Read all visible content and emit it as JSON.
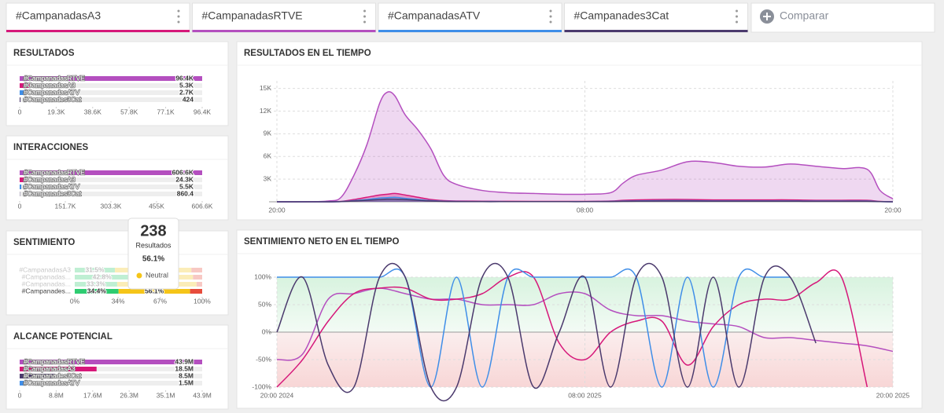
{
  "tabs": [
    {
      "label": "#CampanadasA3",
      "color": "#d6187a"
    },
    {
      "label": "#CampanadasRTVE",
      "color": "#b44fbf"
    },
    {
      "label": "#CampanadasATV",
      "color": "#3f8ee8"
    },
    {
      "label": "#Campanades3Cat",
      "color": "#4b3a6d"
    }
  ],
  "compare": "Comparar",
  "panels": {
    "resultados": {
      "type": "bar",
      "title": "RESULTADOS",
      "categories": [
        "#CampanadasRTVE",
        "#CampanadasA3",
        "#CampanadasATV",
        "#Campanades3Cat"
      ],
      "values": [
        96400,
        5300,
        2700,
        424
      ],
      "value_labels": [
        "96.4K",
        "5.3K",
        "2.7K",
        "424"
      ],
      "colors": [
        "#b44fbf",
        "#d6187a",
        "#3f8ee8",
        "#4b3a6d"
      ],
      "xlim": [
        0,
        96400
      ],
      "xticks": [
        0,
        {
          "value": 19280,
          "label": "19.3K"
        },
        {
          "value": 38560,
          "label": "38.6K"
        },
        {
          "value": 57840,
          "label": "57.8K"
        },
        {
          "value": 77120,
          "label": "77.1K"
        },
        {
          "value": 96400,
          "label": "96.4K"
        }
      ]
    },
    "interacciones": {
      "type": "bar",
      "title": "INTERACCIONES",
      "categories": [
        "#CampanadasRTVE",
        "#CampanadasA3",
        "#CampanadasATV",
        "#Campanades3Cat"
      ],
      "values": [
        606600,
        24300,
        5500,
        860.4
      ],
      "value_labels": [
        "606.6K",
        "24.3K",
        "5.5K",
        "860.4"
      ],
      "colors": [
        "#b44fbf",
        "#d6187a",
        "#3f8ee8",
        "#4b3a6d"
      ],
      "xlim": [
        0,
        606600
      ],
      "xticks": [
        0,
        {
          "value": 151650,
          "label": "151.7K"
        },
        {
          "value": 303300,
          "label": "303.3K"
        },
        {
          "value": 454950,
          "label": "455K"
        },
        {
          "value": 606600,
          "label": "606.6K"
        }
      ]
    },
    "sentimiento": {
      "type": "stacked_bar",
      "title": "SENTIMIENTO",
      "categories": [
        "#CampanadasA3",
        "#Campanadas...",
        "#Campanadas...",
        "#Campanades..."
      ],
      "highlight": 3,
      "series": [
        {
          "color": "#2ecc71",
          "values": [
            31.5,
            42.8,
            33.3,
            34.4
          ],
          "value_labels": [
            "31.5%",
            "42.8%",
            "33.3%",
            "34.4%"
          ]
        },
        {
          "color": "#f5c518",
          "values": [
            60,
            50,
            62.3,
            56.1
          ],
          "value_labels": [
            null,
            null,
            null,
            "56.1%"
          ]
        },
        {
          "color": "#e74c3c",
          "values": [
            8.5,
            7.2,
            4.4,
            9.5
          ],
          "value_labels": [
            null,
            null,
            null,
            null
          ]
        }
      ],
      "xlim": [
        0,
        100
      ],
      "xticks": [
        {
          "value": 0,
          "label": "0%"
        },
        {
          "value": 34,
          "label": "34%"
        },
        {
          "value": 67,
          "label": "67%"
        },
        {
          "value": 100,
          "label": "100%"
        }
      ],
      "tooltip": {
        "value": 238,
        "label": "Resultados",
        "percent": "56.1%",
        "category": "Neutral",
        "color": "#f5c518"
      }
    },
    "alcance": {
      "type": "bar",
      "title": "ALCANCE POTENCIAL",
      "categories": [
        "#CampanadasRTVE",
        "#CampanadasA3",
        "#Campanades3Cat",
        "#CampanadasATV"
      ],
      "values": [
        43900000,
        18500000,
        8500000,
        1500000
      ],
      "value_labels": [
        "43.9M",
        "18.5M",
        "8.5M",
        "1.5M"
      ],
      "colors": [
        "#b44fbf",
        "#d6187a",
        "#4b3a6d",
        "#3f8ee8"
      ],
      "xlim": [
        0,
        43900000
      ],
      "xticks": [
        0,
        {
          "value": 8780000,
          "label": "8.8M"
        },
        {
          "value": 17560000,
          "label": "17.6M"
        },
        {
          "value": 26340000,
          "label": "26.3M"
        },
        {
          "value": 35120000,
          "label": "35.1M"
        },
        {
          "value": 43900000,
          "label": "43.9M"
        }
      ]
    },
    "tiempo": {
      "type": "area",
      "title": "RESULTADOS EN EL TIEMPO",
      "x": [
        0,
        1,
        2,
        2.5,
        3,
        3.5,
        4,
        4.3,
        4.6,
        5,
        5.5,
        6,
        6.5,
        7,
        8,
        9,
        10,
        11,
        12,
        13,
        13.5,
        14,
        15,
        16,
        17,
        18,
        19,
        20,
        21,
        22,
        23,
        23.5,
        24
      ],
      "xlim": [
        0,
        24
      ],
      "xticks": [
        {
          "value": 0,
          "label": "20:00"
        },
        {
          "value": 12,
          "label": "08:00"
        },
        {
          "value": 24,
          "label": "20:00"
        }
      ],
      "ylim": [
        0,
        16000
      ],
      "yticks": [
        {
          "value": 3000,
          "label": "3K"
        },
        {
          "value": 6000,
          "label": "6K"
        },
        {
          "value": 9000,
          "label": "9K"
        },
        {
          "value": 12000,
          "label": "12K"
        },
        {
          "value": 15000,
          "label": "15K"
        }
      ],
      "grid": true,
      "series": [
        {
          "color": "#b44fbf",
          "values": [
            0,
            0,
            100,
            600,
            3500,
            7500,
            13000,
            14500,
            14000,
            11500,
            9500,
            7000,
            3500,
            2300,
            1500,
            1200,
            1100,
            1000,
            1000,
            1200,
            2500,
            3500,
            4200,
            5300,
            5200,
            4700,
            4600,
            5000,
            4700,
            4400,
            4300,
            1500,
            400
          ]
        },
        {
          "color": "#d6187a",
          "values": [
            0,
            0,
            0,
            50,
            300,
            600,
            900,
            1000,
            1100,
            900,
            600,
            300,
            150,
            100,
            80,
            60,
            50,
            50,
            50,
            100,
            200,
            250,
            300,
            300,
            250,
            250,
            250,
            250,
            200,
            200,
            200,
            50,
            0
          ]
        },
        {
          "color": "#3f8ee8",
          "values": [
            0,
            0,
            0,
            30,
            150,
            300,
            500,
            550,
            600,
            450,
            300,
            150,
            80,
            50,
            40,
            30,
            30,
            30,
            30,
            50,
            100,
            120,
            150,
            150,
            120,
            120,
            120,
            120,
            100,
            100,
            100,
            30,
            0
          ]
        },
        {
          "color": "#4b3a6d",
          "values": [
            0,
            0,
            0,
            20,
            100,
            200,
            300,
            350,
            350,
            300,
            200,
            100,
            50,
            30,
            20,
            20,
            20,
            20,
            20,
            30,
            60,
            80,
            100,
            100,
            80,
            80,
            80,
            80,
            60,
            60,
            60,
            20,
            0
          ]
        }
      ]
    },
    "sentimiento_neto": {
      "type": "line",
      "title": "SENTIMIENTO NETO EN EL TIEMPO",
      "x": [
        0,
        1,
        2,
        3,
        4,
        5,
        6,
        7,
        8,
        9,
        10,
        11,
        12,
        13,
        14,
        15,
        16,
        17,
        18,
        19,
        20,
        21,
        22,
        23,
        24
      ],
      "xlim": [
        0,
        24
      ],
      "xticks": [
        {
          "value": 0,
          "label": "20:00 2024"
        },
        {
          "value": 12,
          "label": "08:00 2025"
        },
        {
          "value": 24,
          "label": "20:00 2025"
        }
      ],
      "ylim": [
        -100,
        100
      ],
      "yticks": [
        {
          "value": 100,
          "label": "100%"
        },
        {
          "value": 50,
          "label": "50%"
        },
        {
          "value": 0,
          "label": "0%"
        },
        {
          "value": -50,
          "label": "-50%"
        },
        {
          "value": -100,
          "label": "-100%"
        }
      ],
      "grid": true,
      "series": [
        {
          "color": "#b44fbf",
          "values": [
            -50,
            -40,
            60,
            70,
            80,
            70,
            60,
            60,
            50,
            50,
            50,
            70,
            70,
            40,
            30,
            30,
            20,
            15,
            10,
            -10,
            -10,
            -15,
            -20,
            -25,
            -35
          ]
        },
        {
          "color": "#d6187a",
          "values": [
            -100,
            -50,
            20,
            70,
            80,
            80,
            60,
            60,
            70,
            100,
            100,
            -20,
            -50,
            0,
            20,
            20,
            -60,
            10,
            50,
            60,
            60,
            90,
            100,
            -100,
            null
          ]
        },
        {
          "color": "#3f8ee8",
          "values": [
            100,
            100,
            100,
            100,
            100,
            100,
            -100,
            100,
            -100,
            100,
            100,
            100,
            100,
            100,
            100,
            -100,
            100,
            -100,
            100,
            100,
            100,
            null,
            null,
            null,
            null
          ]
        },
        {
          "color": "#4b3a6d",
          "values": [
            0,
            100,
            -60,
            -100,
            100,
            100,
            -100,
            -100,
            100,
            100,
            -100,
            0,
            100,
            -100,
            100,
            100,
            -100,
            100,
            -100,
            100,
            100,
            -20,
            null,
            null,
            null
          ]
        }
      ]
    }
  }
}
